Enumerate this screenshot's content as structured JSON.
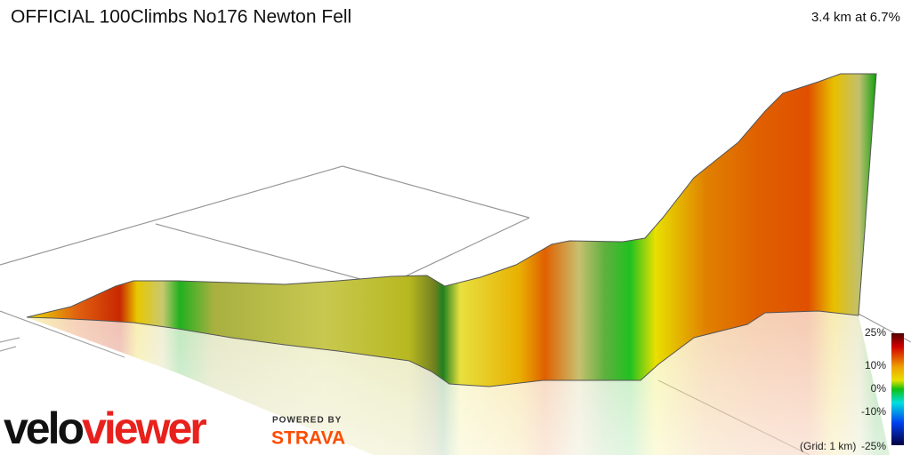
{
  "header": {
    "title": "OFFICIAL 100Climbs No176 Newton Fell",
    "summary": "3.4 km at 6.7%"
  },
  "legend": {
    "ticks": [
      "25%",
      "10%",
      "0%",
      "-10%",
      "-25%"
    ]
  },
  "grid_note": "(Grid: 1 km)",
  "logos": {
    "velo": "velo",
    "viewer": "viewer",
    "powered_by": "POWERED BY",
    "strava": "STRAVA"
  }
}
